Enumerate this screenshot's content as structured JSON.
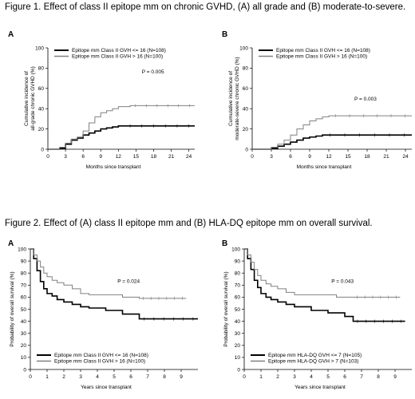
{
  "figure1": {
    "caption": "Figure 1.  Effect of class II epitope mm on chronic GVHD, (A) all grade and (B) moderate-to-severe."
  },
  "figure2": {
    "caption": "Figure 2.  Effect of (A) class II epitope mm and (B) HLA-DQ epitope mm on overall survival."
  },
  "chart_data": [
    {
      "id": "fig1A",
      "type": "line",
      "panel": "A",
      "xlabel": "Months since transplant",
      "ylabel": [
        "Cumulative incidence of",
        "all-grade chronic GVHD (%)"
      ],
      "xlim": [
        0,
        25
      ],
      "ylim": [
        0,
        100
      ],
      "xticks": [
        0,
        3,
        6,
        9,
        12,
        15,
        18,
        21,
        24
      ],
      "yticks": [
        0,
        20,
        40,
        60,
        80,
        100
      ],
      "legend_position": "top-left",
      "annotation": "P = 0.005",
      "series": [
        {
          "name": "Epitope mm Class II GVH <= 16 (N=108)",
          "color": "#000000",
          "width": 1.6,
          "x": [
            0,
            2,
            3,
            4,
            5,
            6,
            7,
            8,
            9,
            10,
            11,
            12,
            13,
            25
          ],
          "y": [
            0,
            1,
            5,
            9,
            11,
            14,
            16,
            18,
            20,
            21,
            22,
            23,
            23,
            23
          ]
        },
        {
          "name": "Epitope mm Class II GVH > 16 (N=100)",
          "color": "#808080",
          "width": 1.0,
          "x": [
            0,
            2,
            3,
            4,
            5,
            6,
            7,
            8,
            9,
            10,
            11,
            12,
            14,
            25
          ],
          "y": [
            0,
            2,
            6,
            10,
            12,
            18,
            26,
            32,
            36,
            38,
            40,
            42,
            43,
            43
          ]
        }
      ]
    },
    {
      "id": "fig1B",
      "type": "line",
      "panel": "B",
      "xlabel": "Months since transplant",
      "ylabel": [
        "Cumulative incidence of",
        "moderate-severe chronic GVHD (%)"
      ],
      "xlim": [
        0,
        25
      ],
      "ylim": [
        0,
        100
      ],
      "xticks": [
        0,
        3,
        6,
        9,
        12,
        15,
        18,
        21,
        24
      ],
      "yticks": [
        0,
        20,
        40,
        60,
        80,
        100
      ],
      "legend_position": "top-left",
      "annotation": "P = 0.003",
      "series": [
        {
          "name": "Epitope mm Class II GVH <= 16 (N=108)",
          "color": "#000000",
          "width": 1.6,
          "x": [
            0,
            3,
            4,
            5,
            6,
            7,
            8,
            9,
            10,
            11,
            25
          ],
          "y": [
            0,
            1,
            3,
            5,
            7,
            9,
            11,
            12,
            13,
            14,
            14
          ]
        },
        {
          "name": "Epitope mm Class II GVH > 16 (N=100)",
          "color": "#808080",
          "width": 1.0,
          "x": [
            0,
            3,
            4,
            5,
            6,
            7,
            8,
            9,
            10,
            11,
            12,
            25
          ],
          "y": [
            0,
            2,
            5,
            9,
            14,
            20,
            24,
            28,
            30,
            32,
            33,
            33
          ]
        }
      ]
    },
    {
      "id": "fig2A",
      "type": "line",
      "panel": "A",
      "xlabel": "Years since transplant",
      "ylabel": [
        "Probability of overall survival (%)"
      ],
      "xlim": [
        0,
        10
      ],
      "ylim": [
        0,
        100
      ],
      "xticks": [
        0,
        1,
        2,
        3,
        4,
        5,
        6,
        7,
        8,
        9
      ],
      "yticks": [
        0,
        10,
        20,
        30,
        40,
        50,
        60,
        70,
        80,
        90,
        100
      ],
      "legend_position": "bottom-left",
      "annotation": "P = 0.024",
      "series": [
        {
          "name": "Epitope mm Class II GVH <= 16 (N=108)",
          "color": "#000000",
          "width": 1.6,
          "x": [
            0,
            0.2,
            0.4,
            0.6,
            0.8,
            1.0,
            1.3,
            1.6,
            2.0,
            2.5,
            3.0,
            3.5,
            4.5,
            5.5,
            6.5,
            10
          ],
          "y": [
            100,
            92,
            82,
            73,
            67,
            63,
            61,
            58,
            56,
            54,
            52,
            51,
            49,
            46,
            42,
            42
          ]
        },
        {
          "name": "Epitope mm Class II GVH > 16 (N=100)",
          "color": "#808080",
          "width": 1.0,
          "x": [
            0,
            0.2,
            0.4,
            0.6,
            0.8,
            1.0,
            1.3,
            1.6,
            2.0,
            2.5,
            3.0,
            3.5,
            4.5,
            5.5,
            6.5,
            9.3
          ],
          "y": [
            100,
            95,
            90,
            85,
            80,
            77,
            74,
            72,
            70,
            67,
            63,
            62,
            62,
            60,
            59,
            59
          ]
        }
      ]
    },
    {
      "id": "fig2B",
      "type": "line",
      "panel": "B",
      "xlabel": "Years since transplant",
      "ylabel": [
        "Probability of overall survival (%)"
      ],
      "xlim": [
        0,
        10
      ],
      "ylim": [
        0,
        100
      ],
      "xticks": [
        0,
        1,
        2,
        3,
        4,
        5,
        6,
        7,
        8,
        9
      ],
      "yticks": [
        0,
        10,
        20,
        30,
        40,
        50,
        60,
        70,
        80,
        90,
        100
      ],
      "legend_position": "bottom-left",
      "annotation": "P = 0.043",
      "series": [
        {
          "name": "Epitope mm HLA-DQ GVH <= 7 (N=105)",
          "color": "#000000",
          "width": 1.6,
          "x": [
            0,
            0.2,
            0.4,
            0.6,
            0.8,
            1.0,
            1.3,
            1.6,
            2.0,
            2.5,
            3.0,
            4.0,
            5.0,
            6.0,
            6.5,
            9.6
          ],
          "y": [
            100,
            92,
            83,
            74,
            68,
            63,
            60,
            58,
            56,
            54,
            52,
            49,
            47,
            44,
            40,
            40
          ]
        },
        {
          "name": "Epitope mm HLA-DQ GVH > 7 (N=103)",
          "color": "#808080",
          "width": 1.0,
          "x": [
            0,
            0.2,
            0.4,
            0.6,
            0.8,
            1.0,
            1.3,
            1.6,
            2.0,
            2.5,
            3.0,
            4.0,
            5.0,
            5.5,
            6.5,
            9.3
          ],
          "y": [
            100,
            95,
            89,
            83,
            78,
            74,
            71,
            69,
            67,
            64,
            62,
            62,
            62,
            60,
            60,
            60
          ]
        }
      ]
    }
  ]
}
